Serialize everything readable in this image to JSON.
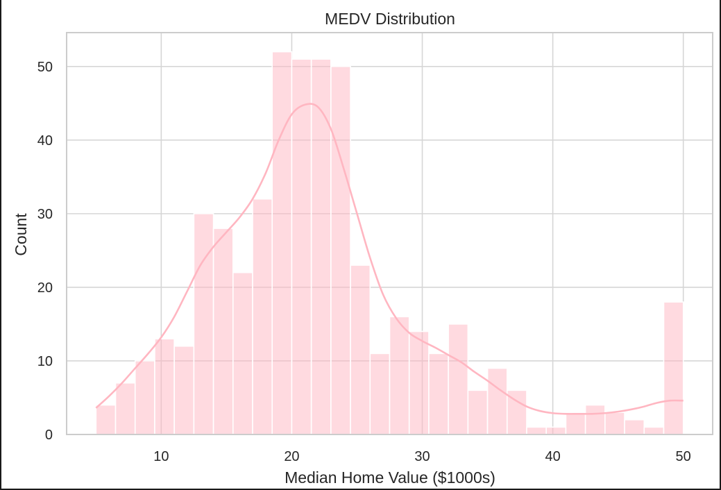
{
  "chart_data": {
    "type": "bar",
    "title": "MEDV Distribution",
    "xlabel": "Median Home Value ($1000s)",
    "ylabel": "Count",
    "xlim": [
      2.75,
      52.25
    ],
    "ylim": [
      0,
      54.6
    ],
    "xticks": [
      10,
      20,
      30,
      40,
      50
    ],
    "yticks": [
      0,
      10,
      20,
      30,
      40,
      50
    ],
    "grid": true,
    "colors": {
      "bar": "#ffb6c1",
      "kde": "#ffb6c1",
      "grid": "#d6d6d6",
      "spine": "#cccccc"
    },
    "bins": {
      "start": 5.0,
      "width": 1.5,
      "counts": [
        4,
        7,
        10,
        13,
        12,
        30,
        28,
        22,
        32,
        52,
        51,
        51,
        50,
        23,
        11,
        16,
        14,
        11,
        15,
        6,
        9,
        6,
        1,
        1,
        3,
        4,
        3,
        2,
        1,
        18
      ]
    },
    "kde": {
      "x": [
        5,
        6,
        7,
        8,
        9,
        10,
        11,
        12,
        13,
        14,
        15,
        16,
        17,
        18,
        19,
        20,
        21,
        22,
        23,
        24,
        25,
        26,
        27,
        28,
        29,
        30,
        31,
        32,
        33,
        34,
        35,
        36,
        37,
        38,
        39,
        40,
        41,
        42,
        43,
        44,
        45,
        46,
        47,
        48,
        49,
        50
      ],
      "y": [
        3.6,
        5.2,
        7.0,
        9.0,
        11.0,
        13.2,
        16.0,
        19.5,
        23.0,
        25.5,
        27.5,
        29.5,
        32.0,
        35.5,
        40.0,
        43.5,
        44.8,
        44.5,
        41.5,
        36.0,
        30.0,
        24.0,
        19.0,
        15.8,
        13.8,
        12.7,
        11.8,
        10.8,
        9.8,
        8.5,
        7.3,
        6.0,
        4.8,
        3.8,
        3.2,
        2.9,
        2.8,
        2.8,
        2.8,
        2.9,
        3.1,
        3.4,
        3.8,
        4.3,
        4.6,
        4.6
      ]
    }
  }
}
